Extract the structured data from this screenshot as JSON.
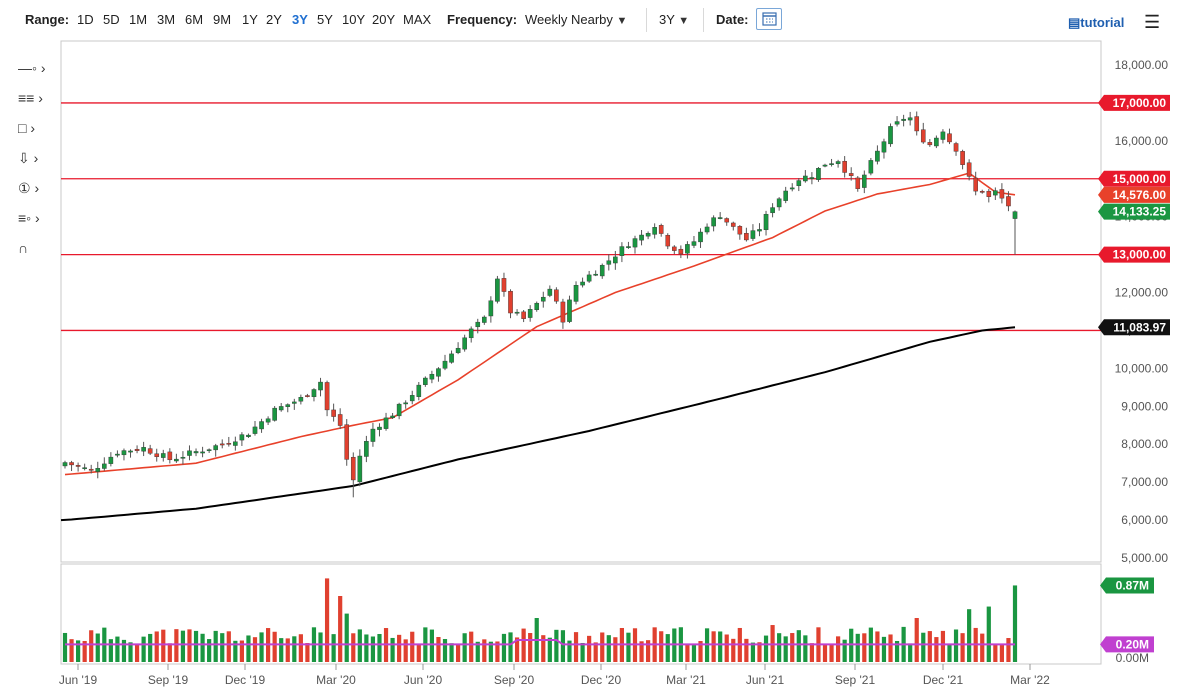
{
  "toolbar": {
    "range_label": "Range:",
    "ranges": [
      "1D",
      "5D",
      "1M",
      "3M",
      "6M",
      "9M",
      "1Y",
      "2Y",
      "3Y",
      "5Y",
      "10Y",
      "20Y",
      "MAX"
    ],
    "active_range": "3Y",
    "frequency_label": "Frequency:",
    "frequency_value": "Weekly Nearby",
    "period_value": "3Y",
    "date_label": "Date:",
    "tutorial_label": "tutorial"
  },
  "colors": {
    "up": "#1a9641",
    "down": "#e0402f",
    "level_line": "#e8192c",
    "ma_fast": "#e8412a",
    "ma_slow": "#000000",
    "vol_avg": "#c040d0"
  },
  "chart_data": {
    "type": "candlestick",
    "ylim": [
      5000,
      18500
    ],
    "y_ticks": [
      "5,000.00",
      "6,000.00",
      "7,000.00",
      "8,000.00",
      "9,000.00",
      "10,000.00",
      "11,000.00",
      "12,000.00",
      "13,000.00",
      "14,000.00",
      "15,000.00",
      "16,000.00",
      "17,000.00",
      "18,000.00"
    ],
    "x_ticks": [
      "Jun '19",
      "Sep '19",
      "Dec '19",
      "Mar '20",
      "Jun '20",
      "Sep '20",
      "Dec '20",
      "Mar '21",
      "Jun '21",
      "Sep '21",
      "Dec '21",
      "Mar '22"
    ],
    "price_anchors": [
      [
        0,
        7520
      ],
      [
        4,
        7300
      ],
      [
        8,
        7800
      ],
      [
        12,
        7900
      ],
      [
        16,
        7600
      ],
      [
        20,
        7800
      ],
      [
        24,
        8000
      ],
      [
        28,
        8300
      ],
      [
        32,
        8900
      ],
      [
        36,
        9200
      ],
      [
        39,
        9650
      ],
      [
        40,
        8900
      ],
      [
        42,
        8500
      ],
      [
        43,
        7600
      ],
      [
        44,
        7050
      ],
      [
        45,
        7700
      ],
      [
        47,
        8400
      ],
      [
        50,
        8800
      ],
      [
        54,
        9500
      ],
      [
        58,
        10200
      ],
      [
        62,
        11000
      ],
      [
        64,
        11300
      ],
      [
        66,
        12400
      ],
      [
        68,
        11500
      ],
      [
        70,
        11300
      ],
      [
        72,
        11700
      ],
      [
        74,
        12100
      ],
      [
        76,
        11300
      ],
      [
        78,
        12200
      ],
      [
        82,
        12700
      ],
      [
        86,
        13300
      ],
      [
        88,
        13500
      ],
      [
        90,
        13800
      ],
      [
        92,
        13300
      ],
      [
        94,
        13050
      ],
      [
        96,
        13350
      ],
      [
        98,
        13800
      ],
      [
        100,
        14050
      ],
      [
        102,
        13700
      ],
      [
        104,
        13400
      ],
      [
        106,
        13700
      ],
      [
        108,
        14300
      ],
      [
        110,
        14700
      ],
      [
        112,
        15000
      ],
      [
        114,
        15100
      ],
      [
        116,
        15400
      ],
      [
        118,
        15500
      ],
      [
        120,
        15000
      ],
      [
        121,
        14700
      ],
      [
        122,
        15100
      ],
      [
        124,
        15700
      ],
      [
        126,
        16300
      ],
      [
        128,
        16600
      ],
      [
        129,
        16600
      ],
      [
        130,
        16200
      ],
      [
        132,
        15900
      ],
      [
        134,
        16300
      ],
      [
        135,
        16000
      ],
      [
        136,
        15800
      ],
      [
        138,
        15000
      ],
      [
        139,
        14650
      ],
      [
        140,
        14700
      ],
      [
        141,
        14500
      ],
      [
        142,
        14650
      ],
      [
        144,
        14300
      ],
      [
        145,
        14133
      ]
    ],
    "ma50": [
      [
        0,
        7200
      ],
      [
        20,
        7500
      ],
      [
        36,
        8200
      ],
      [
        44,
        8500
      ],
      [
        50,
        8700
      ],
      [
        60,
        9700
      ],
      [
        72,
        11100
      ],
      [
        84,
        12000
      ],
      [
        96,
        12700
      ],
      [
        108,
        13450
      ],
      [
        116,
        14150
      ],
      [
        124,
        14600
      ],
      [
        132,
        14850
      ],
      [
        138,
        15150
      ],
      [
        142,
        14650
      ],
      [
        145,
        14576
      ]
    ],
    "ma200": [
      [
        0,
        6000
      ],
      [
        20,
        6300
      ],
      [
        36,
        6700
      ],
      [
        44,
        6900
      ],
      [
        60,
        7600
      ],
      [
        80,
        8350
      ],
      [
        100,
        9200
      ],
      [
        116,
        9900
      ],
      [
        124,
        10300
      ],
      [
        132,
        10700
      ],
      [
        140,
        11000
      ],
      [
        145,
        11084
      ]
    ],
    "levels": [
      17000,
      15000,
      13000,
      11000
    ],
    "price_tags": [
      {
        "value": 17000,
        "label": "17,000.00",
        "color": "#e8192c"
      },
      {
        "value": 15000,
        "label": "15,000.00",
        "color": "#e8192c"
      },
      {
        "value": 14576,
        "label": "14,576.00",
        "color": "#e8412a"
      },
      {
        "value": 14133.25,
        "label": "14,133.25",
        "color": "#1a9641"
      },
      {
        "value": 13000,
        "label": "13,000.00",
        "color": "#e8192c"
      },
      {
        "value": 11083.97,
        "label": "11,083.97",
        "color": "#111111"
      }
    ],
    "volume": {
      "last_volume_label": "0.87M",
      "avg_volume_label": "0.20M",
      "zero_label": "0.00M",
      "ylim_m": [
        0,
        1.0
      ],
      "avg_m": 0.2,
      "spikes": [
        [
          40,
          0.95
        ],
        [
          42,
          0.75
        ],
        [
          43,
          0.55
        ],
        [
          72,
          0.5
        ],
        [
          108,
          0.42
        ],
        [
          130,
          0.5
        ],
        [
          138,
          0.6
        ],
        [
          141,
          0.63
        ],
        [
          145,
          0.87
        ]
      ]
    }
  }
}
